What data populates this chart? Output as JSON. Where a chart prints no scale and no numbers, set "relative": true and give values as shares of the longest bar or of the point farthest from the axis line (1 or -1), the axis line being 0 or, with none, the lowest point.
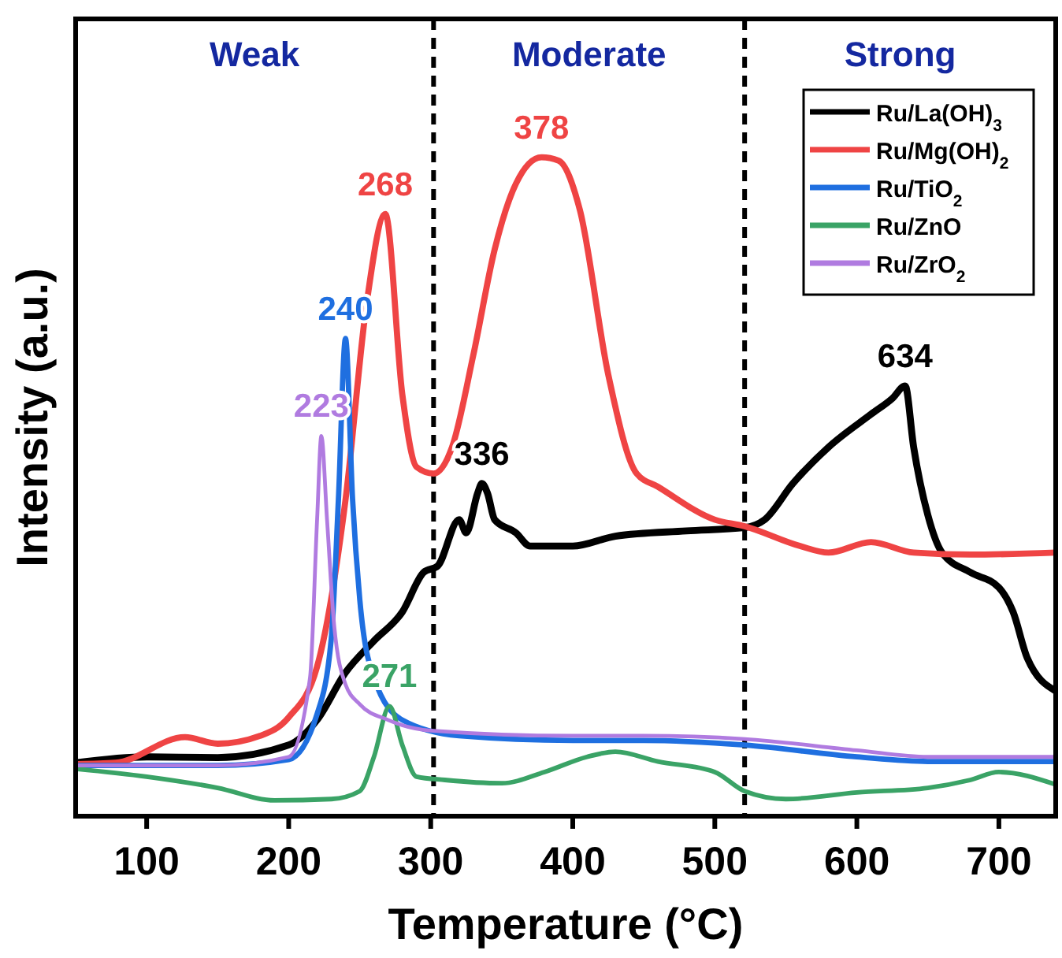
{
  "chart_data": {
    "type": "line",
    "relative": true,
    "xlabel": "Temperature (°C)",
    "ylabel": "Intensity (a.u.)",
    "xlim": [
      50,
      740
    ],
    "xticks": [
      100,
      200,
      300,
      400,
      500,
      600,
      700
    ],
    "tick_labels": "x",
    "grid": false,
    "legend": "top right",
    "line_style": "solid",
    "series": [
      {
        "name": "Ru/La(OH)$_{3}$",
        "color": "#000000",
        "x": [
          50,
          100,
          150,
          200,
          220,
          240,
          260,
          280,
          295,
          305,
          320,
          325,
          333,
          336,
          340,
          345,
          360,
          370,
          400,
          430,
          480,
          521,
          535,
          555,
          580,
          610,
          625,
          634,
          640,
          650,
          660,
          680,
          700,
          710,
          720,
          740
        ],
        "values": [
          0.081,
          0.09,
          0.089,
          0.108,
          0.146,
          0.218,
          0.266,
          0.31,
          0.37,
          0.38,
          0.45,
          0.43,
          0.49,
          0.505,
          0.49,
          0.45,
          0.43,
          0.41,
          0.41,
          0.425,
          0.433,
          0.438,
          0.45,
          0.505,
          0.56,
          0.61,
          0.634,
          0.653,
          0.56,
          0.457,
          0.4,
          0.37,
          0.347,
          0.31,
          0.24,
          0.19
        ]
      },
      {
        "name": "Ru/Mg(OH)$_{2}$",
        "color": "#ef4444",
        "x": [
          50,
          78,
          127,
          150,
          180,
          200,
          220,
          240,
          255,
          268,
          280,
          290,
          302,
          315,
          330,
          345,
          360,
          378,
          390,
          405,
          425,
          445,
          460,
          500,
          521,
          560,
          580,
          610,
          640,
          680,
          740
        ],
        "values": [
          0.079,
          0.081,
          0.12,
          0.11,
          0.122,
          0.15,
          0.227,
          0.48,
          0.78,
          0.914,
          0.64,
          0.53,
          0.52,
          0.56,
          0.7,
          0.86,
          0.96,
          1.0,
          0.995,
          0.92,
          0.67,
          0.52,
          0.5,
          0.45,
          0.44,
          0.41,
          0.4,
          0.416,
          0.4,
          0.397,
          0.4
        ]
      },
      {
        "name": "Ru/TiO$_{2}$",
        "color": "#1f6fe0",
        "x": [
          50,
          150,
          200,
          220,
          230,
          235,
          240,
          245,
          250,
          260,
          280,
          320,
          400,
          450,
          521,
          600,
          650,
          740
        ],
        "values": [
          0.077,
          0.077,
          0.086,
          0.155,
          0.27,
          0.48,
          0.725,
          0.48,
          0.33,
          0.21,
          0.146,
          0.122,
          0.115,
          0.115,
          0.108,
          0.09,
          0.083,
          0.083
        ]
      },
      {
        "name": "Ru/ZnO",
        "color": "#3aa366",
        "x": [
          50,
          100,
          150,
          190,
          230,
          250,
          260,
          271,
          280,
          290,
          310,
          350,
          380,
          410,
          430,
          460,
          500,
          521,
          550,
          600,
          650,
          680,
          700,
          740
        ],
        "values": [
          0.072,
          0.06,
          0.043,
          0.024,
          0.026,
          0.038,
          0.09,
          0.167,
          0.108,
          0.06,
          0.055,
          0.05,
          0.067,
          0.09,
          0.098,
          0.083,
          0.067,
          0.038,
          0.026,
          0.036,
          0.043,
          0.055,
          0.067,
          0.048
        ]
      },
      {
        "name": "Ru/ZrO$_{2}$",
        "color": "#b07be0",
        "x": [
          50,
          150,
          200,
          215,
          220,
          223,
          227,
          232,
          240,
          250,
          270,
          300,
          400,
          450,
          521,
          600,
          650,
          740
        ],
        "values": [
          0.077,
          0.077,
          0.09,
          0.21,
          0.45,
          0.577,
          0.45,
          0.29,
          0.2,
          0.17,
          0.146,
          0.13,
          0.122,
          0.122,
          0.117,
          0.1,
          0.09,
          0.09
        ]
      }
    ],
    "ref_lines": [
      {
        "axis": "x",
        "value": 302,
        "color": "#000000",
        "line_style": "dashed"
      },
      {
        "axis": "x",
        "value": 521,
        "color": "#000000",
        "line_style": "dashed"
      }
    ],
    "annotations": [
      "Weak",
      "Moderate",
      "Strong",
      {
        "text": "378",
        "x": 378,
        "y": 1.0
      },
      {
        "text": "268",
        "x": 268,
        "y": 0.914
      },
      {
        "text": "240",
        "x": 240,
        "y": 0.725
      },
      {
        "text": "223",
        "x": 223,
        "y": 0.577
      },
      {
        "text": "336",
        "x": 336,
        "y": 0.505
      },
      {
        "text": "634",
        "x": 634,
        "y": 0.653
      },
      {
        "text": "271",
        "x": 271,
        "y": 0.167
      }
    ]
  }
}
